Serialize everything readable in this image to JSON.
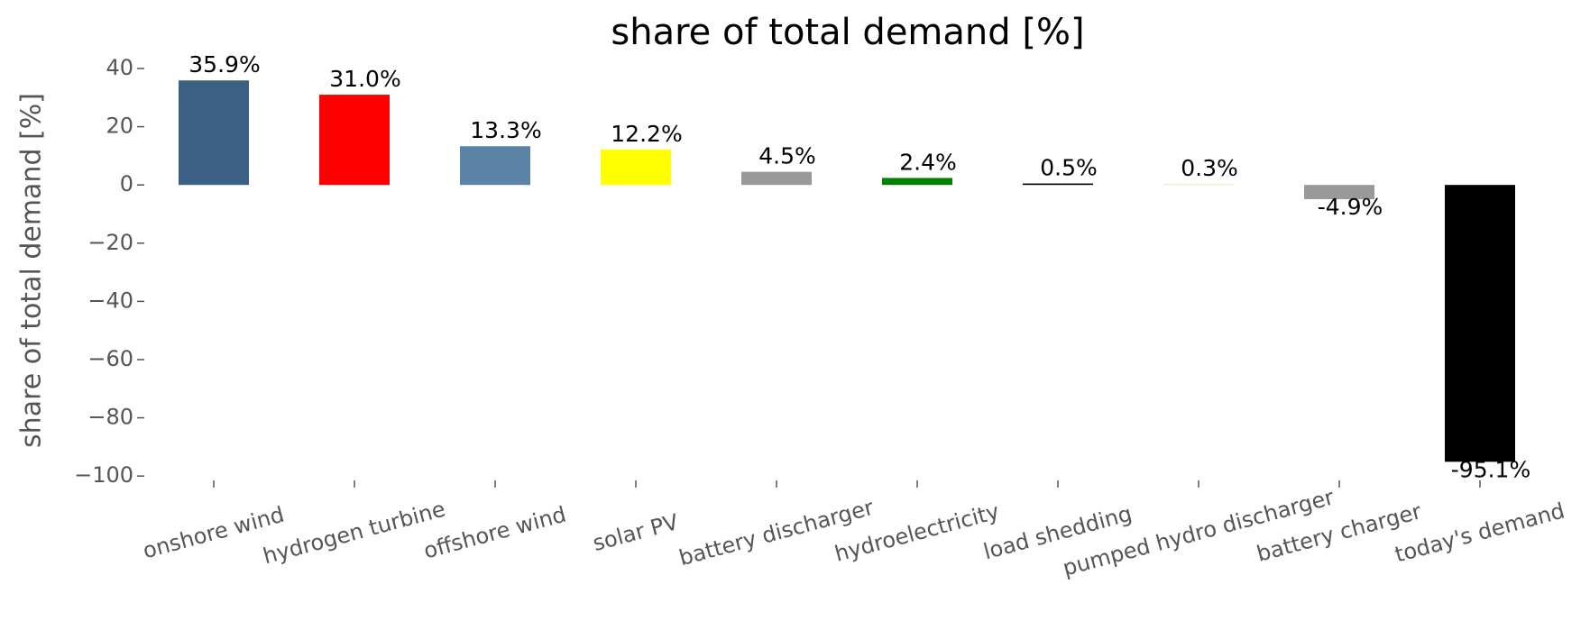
{
  "chart_data": {
    "type": "bar",
    "title": "share of total demand [%]",
    "ylabel": "share of total demand [%]",
    "categories": [
      "onshore wind",
      "hydrogen turbine",
      "offshore wind",
      "solar PV",
      "battery discharger",
      "hydroelectricity",
      "load shedding",
      "pumped hydro discharger",
      "battery charger",
      "today's demand"
    ],
    "values": [
      35.9,
      31.0,
      13.3,
      12.2,
      4.5,
      2.4,
      0.5,
      0.3,
      -4.9,
      -95.1
    ],
    "value_labels": [
      "35.9%",
      "31.0%",
      "13.3%",
      "12.2%",
      "4.5%",
      "2.4%",
      "0.5%",
      "0.3%",
      "-4.9%",
      "-95.1%"
    ],
    "colors": [
      "#3b6083",
      "#ff0000",
      "#5b83a6",
      "#ffff00",
      "#999999",
      "#008000",
      "#000000",
      "#e3f0b0",
      "#999999",
      "#000000"
    ],
    "ylim": [
      -104.9,
      41.7
    ],
    "yticks": [
      {
        "value": -100,
        "label": "−100"
      },
      {
        "value": -80,
        "label": "−80"
      },
      {
        "value": -60,
        "label": "−60"
      },
      {
        "value": -40,
        "label": "−40"
      },
      {
        "value": -20,
        "label": "−20"
      },
      0,
      20,
      40
    ],
    "grid": false
  }
}
